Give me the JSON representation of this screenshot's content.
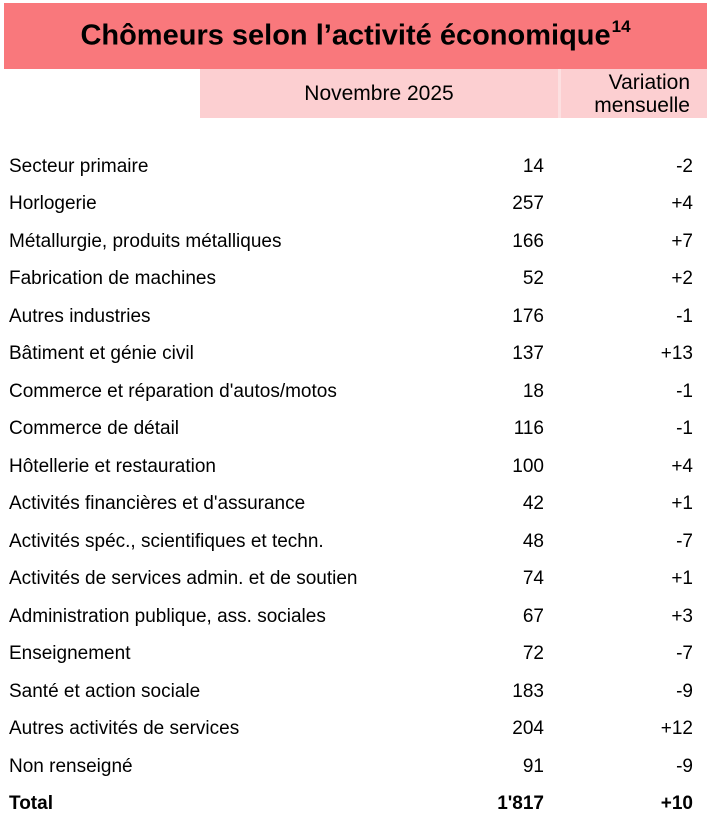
{
  "colors": {
    "title_bar": "#F9787C",
    "subheader": "#FCCFD1",
    "divider": "#FCE0E1",
    "text": "#000000",
    "background": "#FFFFFF"
  },
  "title": {
    "text": "Chômeurs selon l’activité économique",
    "footnote": "14"
  },
  "header": {
    "period": "Novembre 2025",
    "variation": "Variation mensuelle"
  },
  "rows": [
    {
      "label": "Secteur primaire",
      "value": "14",
      "variation": "-2"
    },
    {
      "label": "Horlogerie",
      "value": "257",
      "variation": "+4"
    },
    {
      "label": "Métallurgie, produits métalliques",
      "value": "166",
      "variation": "+7"
    },
    {
      "label": "Fabrication de machines",
      "value": "52",
      "variation": "+2"
    },
    {
      "label": "Autres industries",
      "value": "176",
      "variation": "-1"
    },
    {
      "label": "Bâtiment et génie civil",
      "value": "137",
      "variation": "+13"
    },
    {
      "label": "Commerce et réparation d'autos/motos",
      "value": "18",
      "variation": "-1"
    },
    {
      "label": "Commerce de détail",
      "value": "116",
      "variation": "-1"
    },
    {
      "label": "Hôtellerie et restauration",
      "value": "100",
      "variation": "+4"
    },
    {
      "label": "Activités financières et d'assurance",
      "value": "42",
      "variation": "+1"
    },
    {
      "label": "Activités spéc., scientifiques et techn.",
      "value": "48",
      "variation": "-7"
    },
    {
      "label": "Activités de services admin. et de soutien",
      "value": "74",
      "variation": "+1"
    },
    {
      "label": "Administration publique, ass. sociales",
      "value": "67",
      "variation": "+3"
    },
    {
      "label": "Enseignement",
      "value": "72",
      "variation": "-7"
    },
    {
      "label": "Santé et action sociale",
      "value": "183",
      "variation": "-9"
    },
    {
      "label": "Autres activités de services",
      "value": "204",
      "variation": "+12"
    },
    {
      "label": "Non renseigné",
      "value": "91",
      "variation": "-9"
    },
    {
      "label": "Total",
      "value": "1'817",
      "variation": "+10"
    }
  ]
}
